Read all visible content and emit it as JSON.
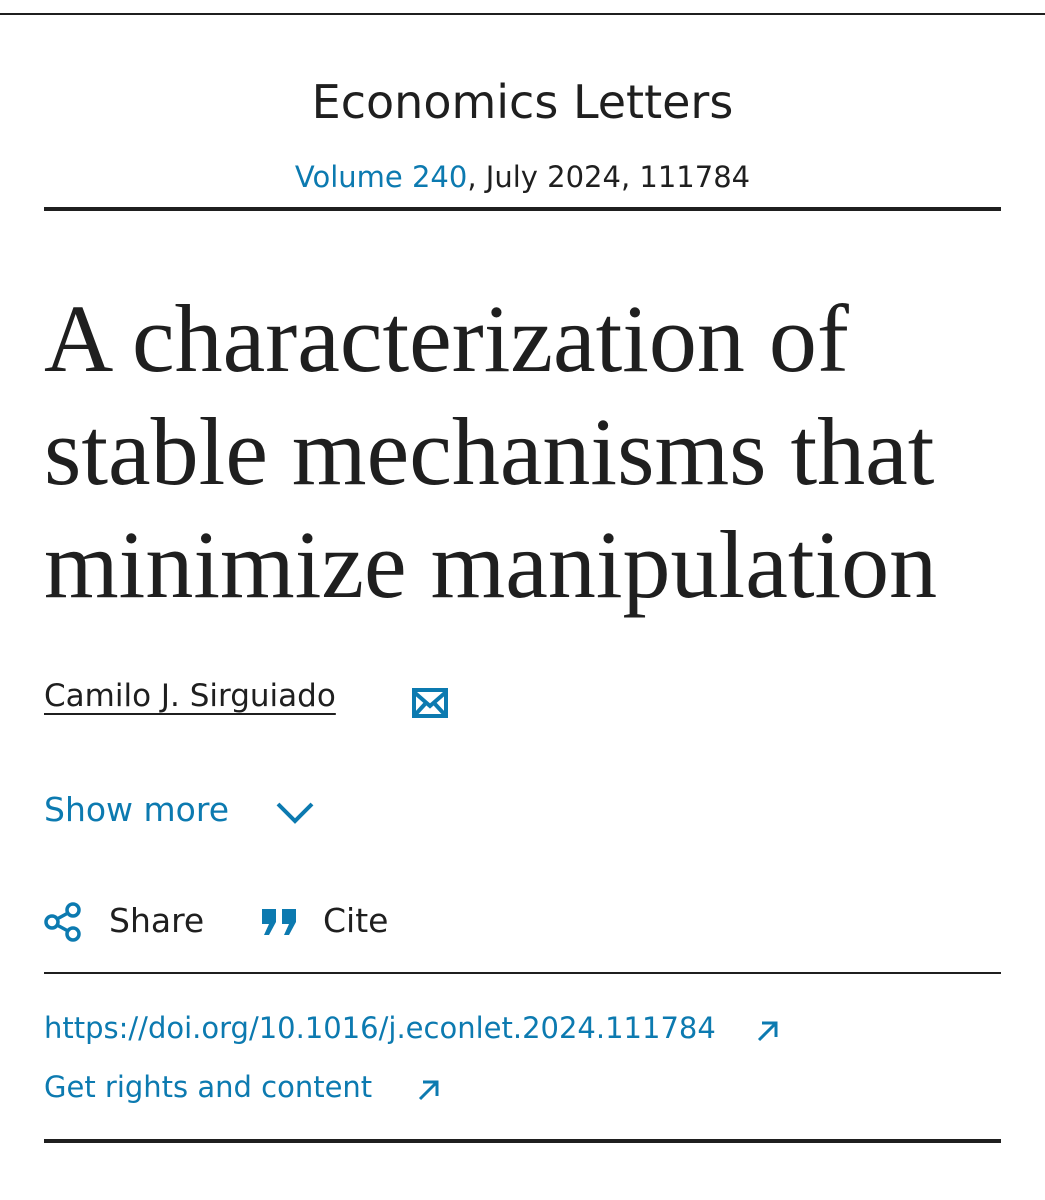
{
  "header": {
    "journal": "Economics Letters",
    "volume": "Volume 240",
    "issue_info": ", July 2024, 111784"
  },
  "article": {
    "title_lines": [
      "A characterization of",
      "stable mechanisms that",
      "minimize manipulation"
    ],
    "author": "Camilo J. Sirguiado"
  },
  "actions": {
    "show_more": "Show more",
    "share": "Share",
    "cite": "Cite"
  },
  "links": {
    "doi": "https://doi.org/10.1016/j.econlet.2024.111784",
    "rights": "Get rights and content"
  }
}
